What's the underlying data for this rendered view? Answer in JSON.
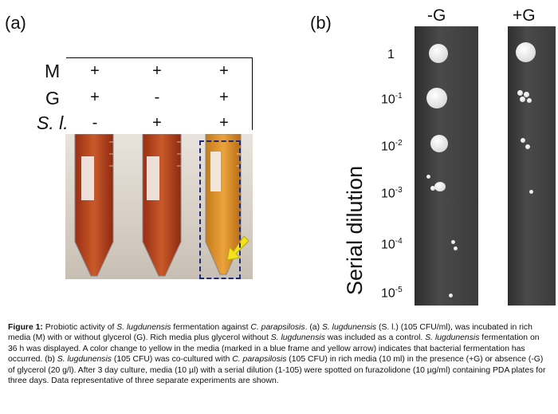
{
  "panel_a": {
    "label": "(a)",
    "rows": [
      {
        "label": "M",
        "italic": false,
        "values": [
          "+",
          "+",
          "+"
        ]
      },
      {
        "label": "G",
        "italic": false,
        "values": [
          "+",
          "-",
          "+"
        ]
      },
      {
        "label": "S. l.",
        "italic": true,
        "values": [
          "-",
          "+",
          "+"
        ]
      }
    ]
  },
  "panel_b": {
    "label": "(b)",
    "axis_label": "Serial dilution",
    "columns": [
      "-G",
      "+G"
    ],
    "dilutions": [
      {
        "base": "1",
        "exp": ""
      },
      {
        "base": "10",
        "exp": "-1"
      },
      {
        "base": "10",
        "exp": "-2"
      },
      {
        "base": "10",
        "exp": "-3"
      },
      {
        "base": "10",
        "exp": "-4"
      },
      {
        "base": "10",
        "exp": "-5"
      }
    ]
  },
  "caption": {
    "figure_label": "Figure 1:",
    "p1": " Probiotic activity of ",
    "sl": "S. lugdunensis",
    "p2": " fermentation against ",
    "cp": "C. parapsilosis",
    "p3": ". (a) ",
    "p4": " (S. l.) (105 CFU/ml), was incubated in rich media (M) with or without glycerol (G). Rich media plus glycerol without ",
    "p5": " was included as a control. ",
    "p6": " fermentation on 36 h was displayed. A color change to yellow in the media (marked in a blue frame and yellow arrow) indicates that bacterial fermentation has occurred. (b) ",
    "p7": " (105 CFU) was co-cultured with ",
    "cp2": "C. parapsilosis",
    "p8": " (105 CFU) in rich media (10 ml) in the presence (+G) or absence (-G) of glycerol (20 g/l). After 3 day culture, media (10 µl) with a serial dilution (1-105) were spotted on furazolidone (10 µg/ml) containing PDA plates for three days. Data representative of three separate experiments are shown."
  },
  "colors": {
    "frame": "#1b2a7a",
    "arrow": "#f2e21b"
  }
}
